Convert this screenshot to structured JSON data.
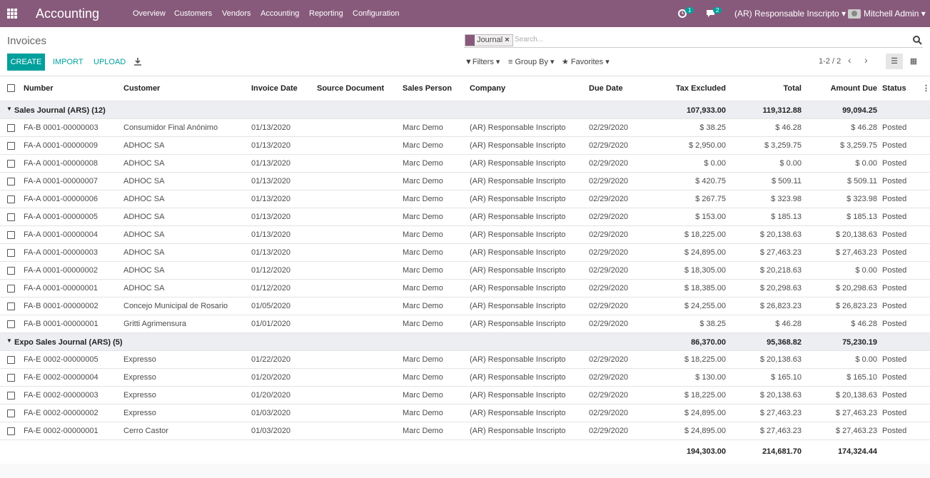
{
  "navbar": {
    "app": "Accounting",
    "menu": [
      "Overview",
      "Customers",
      "Vendors",
      "Accounting",
      "Reporting",
      "Configuration"
    ],
    "activity_badge": "1",
    "message_badge": "2",
    "company": "(AR) Responsable Inscripto",
    "user": "Mitchell Admin"
  },
  "control": {
    "breadcrumb": "Invoices",
    "facet": "Journal",
    "search_placeholder": "Search...",
    "buttons": [
      "CREATE",
      "IMPORT",
      "UPLOAD"
    ],
    "filters": "Filters",
    "group_by": "Group By",
    "favorites": "Favorites",
    "pager": "1-2 / 2"
  },
  "table": {
    "columns": [
      "Number",
      "Customer",
      "Invoice Date",
      "Source Document",
      "Sales Person",
      "Company",
      "Due Date",
      "Tax Excluded",
      "Total",
      "Amount Due",
      "Status"
    ],
    "groups": [
      {
        "label": "Sales Journal (ARS) (12)",
        "tax_excluded": "107,933.00",
        "total": "119,312.88",
        "amount_due": "99,094.25",
        "rows": [
          [
            "FA-B 0001-00000003",
            "Consumidor Final Anónimo",
            "01/13/2020",
            "Marc Demo",
            "(AR) Responsable Inscripto",
            "02/29/2020",
            "$ 38.25",
            "$ 46.28",
            "$ 46.28",
            "Posted"
          ],
          [
            "FA-A 0001-00000009",
            "ADHOC SA",
            "01/13/2020",
            "Marc Demo",
            "(AR) Responsable Inscripto",
            "02/29/2020",
            "$ 2,950.00",
            "$ 3,259.75",
            "$ 3,259.75",
            "Posted"
          ],
          [
            "FA-A 0001-00000008",
            "ADHOC SA",
            "01/13/2020",
            "Marc Demo",
            "(AR) Responsable Inscripto",
            "02/29/2020",
            "$ 0.00",
            "$ 0.00",
            "$ 0.00",
            "Posted"
          ],
          [
            "FA-A 0001-00000007",
            "ADHOC SA",
            "01/13/2020",
            "Marc Demo",
            "(AR) Responsable Inscripto",
            "02/29/2020",
            "$ 420.75",
            "$ 509.11",
            "$ 509.11",
            "Posted"
          ],
          [
            "FA-A 0001-00000006",
            "ADHOC SA",
            "01/13/2020",
            "Marc Demo",
            "(AR) Responsable Inscripto",
            "02/29/2020",
            "$ 267.75",
            "$ 323.98",
            "$ 323.98",
            "Posted"
          ],
          [
            "FA-A 0001-00000005",
            "ADHOC SA",
            "01/13/2020",
            "Marc Demo",
            "(AR) Responsable Inscripto",
            "02/29/2020",
            "$ 153.00",
            "$ 185.13",
            "$ 185.13",
            "Posted"
          ],
          [
            "FA-A 0001-00000004",
            "ADHOC SA",
            "01/13/2020",
            "Marc Demo",
            "(AR) Responsable Inscripto",
            "02/29/2020",
            "$ 18,225.00",
            "$ 20,138.63",
            "$ 20,138.63",
            "Posted"
          ],
          [
            "FA-A 0001-00000003",
            "ADHOC SA",
            "01/13/2020",
            "Marc Demo",
            "(AR) Responsable Inscripto",
            "02/29/2020",
            "$ 24,895.00",
            "$ 27,463.23",
            "$ 27,463.23",
            "Posted"
          ],
          [
            "FA-A 0001-00000002",
            "ADHOC SA",
            "01/12/2020",
            "Marc Demo",
            "(AR) Responsable Inscripto",
            "02/29/2020",
            "$ 18,305.00",
            "$ 20,218.63",
            "$ 0.00",
            "Posted"
          ],
          [
            "FA-A 0001-00000001",
            "ADHOC SA",
            "01/12/2020",
            "Marc Demo",
            "(AR) Responsable Inscripto",
            "02/29/2020",
            "$ 18,385.00",
            "$ 20,298.63",
            "$ 20,298.63",
            "Posted"
          ],
          [
            "FA-B 0001-00000002",
            "Concejo Municipal de Rosario",
            "01/05/2020",
            "Marc Demo",
            "(AR) Responsable Inscripto",
            "02/29/2020",
            "$ 24,255.00",
            "$ 26,823.23",
            "$ 26,823.23",
            "Posted"
          ],
          [
            "FA-B 0001-00000001",
            "Gritti Agrimensura",
            "01/01/2020",
            "Marc Demo",
            "(AR) Responsable Inscripto",
            "02/29/2020",
            "$ 38.25",
            "$ 46.28",
            "$ 46.28",
            "Posted"
          ]
        ]
      },
      {
        "label": "Expo Sales Journal (ARS) (5)",
        "tax_excluded": "86,370.00",
        "total": "95,368.82",
        "amount_due": "75,230.19",
        "rows": [
          [
            "FA-E 0002-00000005",
            "Expresso",
            "01/22/2020",
            "Marc Demo",
            "(AR) Responsable Inscripto",
            "02/29/2020",
            "$ 18,225.00",
            "$ 20,138.63",
            "$ 0.00",
            "Posted"
          ],
          [
            "FA-E 0002-00000004",
            "Expresso",
            "01/20/2020",
            "Marc Demo",
            "(AR) Responsable Inscripto",
            "02/29/2020",
            "$ 130.00",
            "$ 165.10",
            "$ 165.10",
            "Posted"
          ],
          [
            "FA-E 0002-00000003",
            "Expresso",
            "01/20/2020",
            "Marc Demo",
            "(AR) Responsable Inscripto",
            "02/29/2020",
            "$ 18,225.00",
            "$ 20,138.63",
            "$ 20,138.63",
            "Posted"
          ],
          [
            "FA-E 0002-00000002",
            "Expresso",
            "01/03/2020",
            "Marc Demo",
            "(AR) Responsable Inscripto",
            "02/29/2020",
            "$ 24,895.00",
            "$ 27,463.23",
            "$ 27,463.23",
            "Posted"
          ],
          [
            "FA-E 0002-00000001",
            "Cerro Castor",
            "01/03/2020",
            "Marc Demo",
            "(AR) Responsable Inscripto",
            "02/29/2020",
            "$ 24,895.00",
            "$ 27,463.23",
            "$ 27,463.23",
            "Posted"
          ]
        ]
      }
    ],
    "totals": {
      "tax_excluded": "194,303.00",
      "total": "214,681.70",
      "amount_due": "174,324.44"
    }
  }
}
